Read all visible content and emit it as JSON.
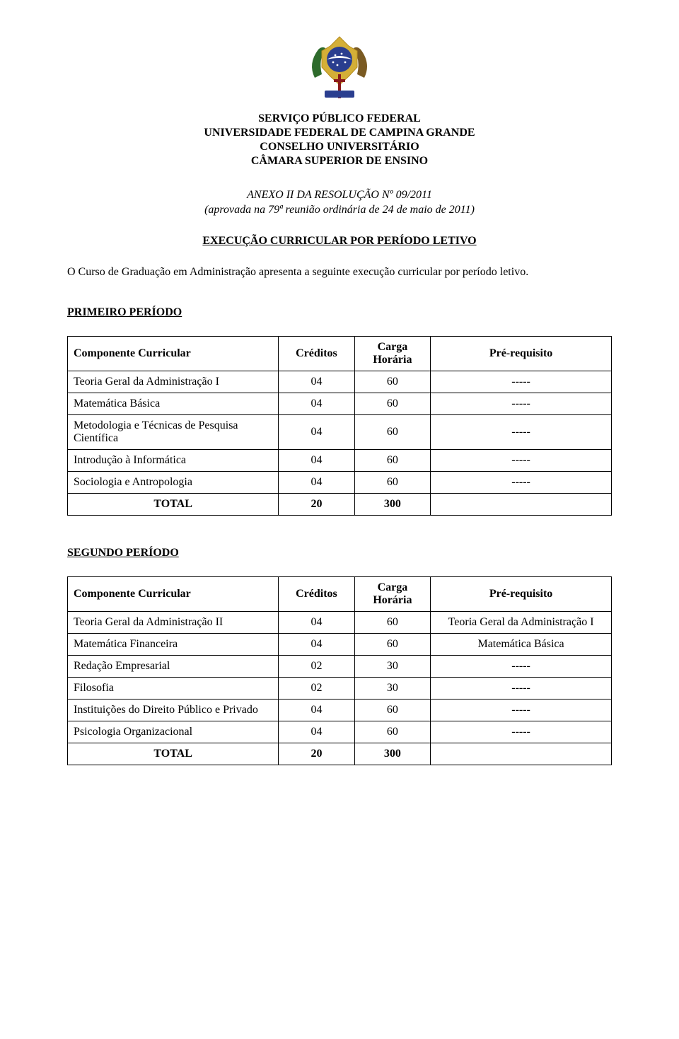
{
  "emblem": {
    "sphere_color": "#2a3e8f",
    "stars_color": "#ffffff",
    "band_color": "#ffffff",
    "wreath_left_color": "#2e6b2c",
    "wreath_right_color": "#7a5a22",
    "shield_color": "#d4af37",
    "sword_color": "#8b1a1a"
  },
  "header": {
    "line1": "SERVIÇO PÚBLICO FEDERAL",
    "line2": "UNIVERSIDADE FEDERAL DE CAMPINA GRANDE",
    "line3": "CONSELHO UNIVERSITÁRIO",
    "line4": "CÂMARA SUPERIOR DE ENSINO"
  },
  "annex": {
    "title_line1": "ANEXO II DA RESOLUÇÃO Nº 09/2011",
    "title_line2": "(aprovada na 79ª reunião ordinária de 24 de maio de 2011)"
  },
  "section_title": "EXECUÇÃO CURRICULAR POR PERÍODO LETIVO",
  "intro": "O Curso de Graduação em Administração apresenta a seguinte execução curricular por período letivo.",
  "table_headers": {
    "componente": "Componente Curricular",
    "creditos": "Créditos",
    "carga": "Carga Horária",
    "prereq": "Pré-requisito"
  },
  "total_label": "TOTAL",
  "periods": [
    {
      "heading": "PRIMEIRO PERÍODO",
      "rows": [
        {
          "componente": "Teoria Geral da Administração I",
          "creditos": "04",
          "carga": "60",
          "prereq": "-----"
        },
        {
          "componente": "Matemática Básica",
          "creditos": "04",
          "carga": "60",
          "prereq": "-----"
        },
        {
          "componente": "Metodologia e Técnicas de Pesquisa Científica",
          "creditos": "04",
          "carga": "60",
          "prereq": "-----"
        },
        {
          "componente": "Introdução à Informática",
          "creditos": "04",
          "carga": "60",
          "prereq": "-----"
        },
        {
          "componente": "Sociologia e Antropologia",
          "creditos": "04",
          "carga": "60",
          "prereq": "-----"
        }
      ],
      "total_creditos": "20",
      "total_carga": "300"
    },
    {
      "heading": "SEGUNDO PERÍODO",
      "rows": [
        {
          "componente": "Teoria Geral da Administração II",
          "creditos": "04",
          "carga": "60",
          "prereq": "Teoria Geral da Administração I"
        },
        {
          "componente": "Matemática Financeira",
          "creditos": "04",
          "carga": "60",
          "prereq": "Matemática Básica"
        },
        {
          "componente": "Redação Empresarial",
          "creditos": "02",
          "carga": "30",
          "prereq": "-----"
        },
        {
          "componente": "Filosofia",
          "creditos": "02",
          "carga": "30",
          "prereq": "-----"
        },
        {
          "componente": "Instituições do Direito Público e Privado",
          "creditos": "04",
          "carga": "60",
          "prereq": "-----"
        },
        {
          "componente": "Psicologia Organizacional",
          "creditos": "04",
          "carga": "60",
          "prereq": "-----"
        }
      ],
      "total_creditos": "20",
      "total_carga": "300"
    }
  ]
}
